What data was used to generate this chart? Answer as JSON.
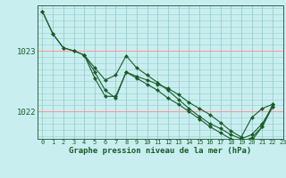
{
  "title": "Graphe pression niveau de la mer (hPa)",
  "bg_color": "#c8eef0",
  "grid_color_h_major": "#ff9999",
  "grid_color_v": "#99cccc",
  "line_color": "#1a5c28",
  "marker": "D",
  "markersize": 2.0,
  "linewidth": 0.8,
  "xlim": [
    -0.5,
    23
  ],
  "ylim": [
    1021.55,
    1023.75
  ],
  "yticks": [
    1022,
    1023
  ],
  "xticks": [
    0,
    1,
    2,
    3,
    4,
    5,
    6,
    7,
    8,
    9,
    10,
    11,
    12,
    13,
    14,
    15,
    16,
    17,
    18,
    19,
    20,
    21,
    22,
    23
  ],
  "series": [
    {
      "x": [
        0,
        1,
        2,
        3,
        4,
        5,
        6,
        7,
        8,
        9,
        10,
        11,
        12,
        13,
        14,
        15,
        16,
        17,
        18,
        19,
        20,
        21,
        22
      ],
      "y": [
        1023.65,
        1023.28,
        1023.05,
        1023.0,
        1022.93,
        1022.72,
        1022.52,
        1022.6,
        1022.92,
        1022.72,
        1022.6,
        1022.48,
        1022.35,
        1022.2,
        1022.05,
        1021.92,
        1021.8,
        1021.72,
        1021.62,
        1021.55,
        1021.62,
        1021.8,
        1022.08
      ]
    },
    {
      "x": [
        0,
        1,
        2,
        3,
        4,
        5,
        6,
        7,
        8,
        9,
        10,
        11,
        12,
        13,
        14,
        15,
        16,
        17,
        18,
        19,
        20,
        21,
        22
      ],
      "y": [
        1023.65,
        1023.28,
        1023.05,
        1023.0,
        1022.93,
        1022.55,
        1022.25,
        1022.25,
        1022.65,
        1022.55,
        1022.45,
        1022.35,
        1022.22,
        1022.12,
        1022.0,
        1021.88,
        1021.75,
        1021.65,
        1021.55,
        1021.5,
        1021.57,
        1021.75,
        1022.08
      ]
    },
    {
      "x": [
        4,
        5,
        6,
        7,
        8,
        9,
        10,
        11,
        12,
        13,
        14,
        15,
        16,
        17,
        18,
        19,
        20,
        21,
        22
      ],
      "y": [
        1022.93,
        1022.65,
        1022.35,
        1022.22,
        1022.65,
        1022.58,
        1022.52,
        1022.45,
        1022.38,
        1022.28,
        1022.15,
        1022.05,
        1021.95,
        1021.82,
        1021.68,
        1021.58,
        1021.9,
        1022.05,
        1022.12
      ]
    },
    {
      "x": [
        19,
        20,
        21,
        22
      ],
      "y": [
        1021.5,
        1021.52,
        1021.75,
        1022.12
      ]
    }
  ]
}
